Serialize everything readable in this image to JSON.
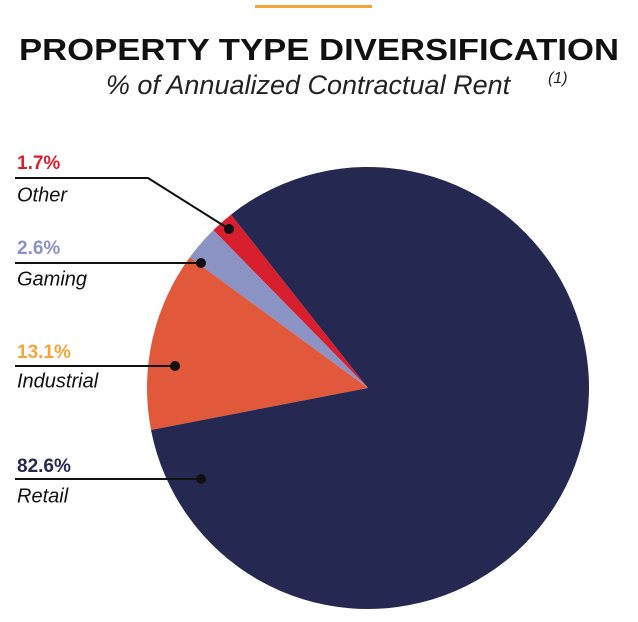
{
  "chart_data": {
    "type": "pie",
    "title": "PROPERTY TYPE DIVERSIFICATION",
    "subtitle": "% of Annualized Contractual Rent",
    "subtitle_note": "(1)",
    "categories": [
      "Other",
      "Gaming",
      "Industrial",
      "Retail"
    ],
    "values": [
      1.7,
      2.6,
      13.1,
      82.6
    ],
    "value_labels": [
      "1.7%",
      "2.6%",
      "13.1%",
      "82.6%"
    ],
    "colors": [
      "#d81f2e",
      "#8b93c4",
      "#e2583a",
      "#252850"
    ],
    "label_colors": [
      "#d81f2e",
      "#8b93c4",
      "#f5a53b",
      "#252850"
    ]
  }
}
